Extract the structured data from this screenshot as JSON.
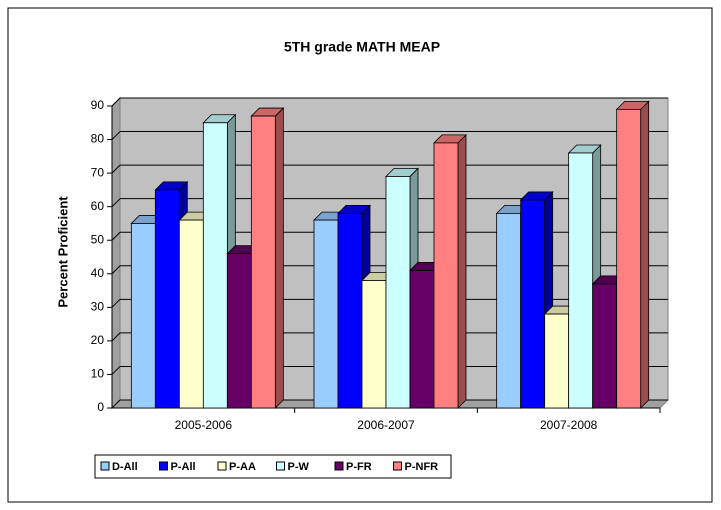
{
  "chart_data": {
    "type": "bar3d",
    "title": "5TH grade MATH MEAP",
    "y_label": "Percent Proficient",
    "categories": [
      "2005-2006",
      "2006-2007",
      "2007-2008"
    ],
    "series": [
      {
        "name": "D-All",
        "color": "#99ccff",
        "values": [
          55,
          56,
          58
        ]
      },
      {
        "name": "P-All",
        "color": "#0000ff",
        "values": [
          65,
          58,
          62
        ]
      },
      {
        "name": "P-AA",
        "color": "#ffffcc",
        "values": [
          56,
          38,
          28
        ]
      },
      {
        "name": "P-W",
        "color": "#ccffff",
        "values": [
          85,
          69,
          76
        ]
      },
      {
        "name": "P-FR",
        "color": "#660066",
        "values": [
          46,
          41,
          37
        ]
      },
      {
        "name": "P-NFR",
        "color": "#ff8080",
        "values": [
          87,
          79,
          89
        ]
      }
    ],
    "ylim": [
      0,
      90
    ],
    "yticks": [
      0,
      10,
      20,
      30,
      40,
      50,
      60,
      70,
      80,
      90
    ],
    "grid": true
  }
}
